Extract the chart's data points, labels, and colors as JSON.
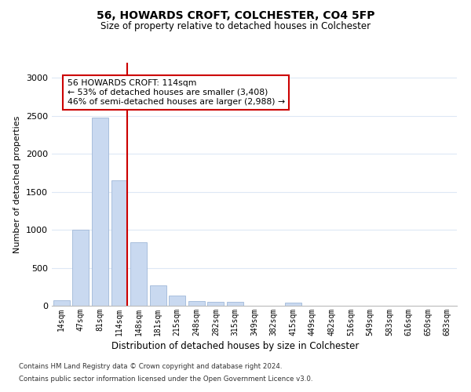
{
  "title1": "56, HOWARDS CROFT, COLCHESTER, CO4 5FP",
  "title2": "Size of property relative to detached houses in Colchester",
  "xlabel": "Distribution of detached houses by size in Colchester",
  "ylabel": "Number of detached properties",
  "categories": [
    "14sqm",
    "47sqm",
    "81sqm",
    "114sqm",
    "148sqm",
    "181sqm",
    "215sqm",
    "248sqm",
    "282sqm",
    "315sqm",
    "349sqm",
    "382sqm",
    "415sqm",
    "449sqm",
    "482sqm",
    "516sqm",
    "549sqm",
    "583sqm",
    "616sqm",
    "650sqm",
    "683sqm"
  ],
  "values": [
    75,
    1000,
    2480,
    1650,
    840,
    270,
    130,
    60,
    55,
    50,
    0,
    0,
    40,
    0,
    0,
    0,
    0,
    0,
    0,
    0,
    0
  ],
  "bar_color": "#c9d9f0",
  "bar_edgecolor": "#a0b8d8",
  "red_line_index": 3,
  "annotation_text": "56 HOWARDS CROFT: 114sqm\n← 53% of detached houses are smaller (3,408)\n46% of semi-detached houses are larger (2,988) →",
  "annotation_box_color": "#ffffff",
  "annotation_box_edgecolor": "#cc0000",
  "ylim": [
    0,
    3200
  ],
  "yticks": [
    0,
    500,
    1000,
    1500,
    2000,
    2500,
    3000
  ],
  "footer1": "Contains HM Land Registry data © Crown copyright and database right 2024.",
  "footer2": "Contains public sector information licensed under the Open Government Licence v3.0.",
  "bg_color": "#ffffff",
  "grid_color": "#dde8f5"
}
